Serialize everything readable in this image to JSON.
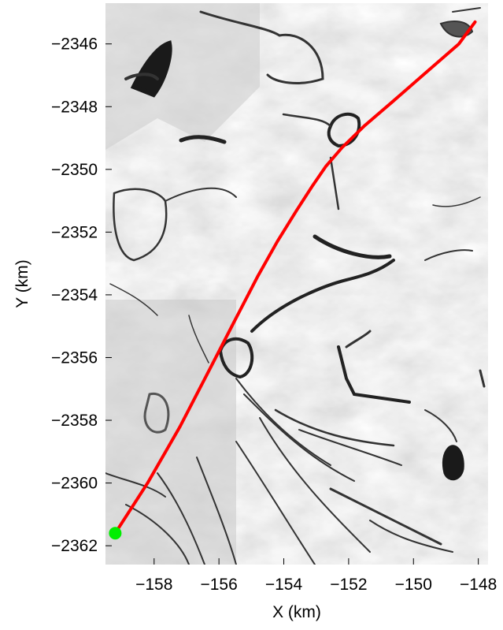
{
  "chart_data": {
    "type": "line",
    "title": "",
    "xlabel": "X (km)",
    "ylabel": "Y (km)",
    "xlim": [
      -159.5,
      -147.7
    ],
    "ylim": [
      -2362.6,
      -2344.7
    ],
    "x_ticks": [
      -158,
      -156,
      -154,
      -152,
      -150,
      -148
    ],
    "y_ticks": [
      -2346,
      -2348,
      -2350,
      -2352,
      -2354,
      -2356,
      -2358,
      -2360,
      -2362
    ],
    "x_tick_labels": [
      "−158",
      "−156",
      "−154",
      "−152",
      "−150",
      "−148"
    ],
    "y_tick_labels": [
      "−2346",
      "−2348",
      "−2350",
      "−2352",
      "−2354",
      "−2356",
      "−2358",
      "−2360",
      "−2362"
    ],
    "grid": false,
    "legend": "none",
    "background": "grayscale satellite image of sea ice with fractures and leads",
    "series": [
      {
        "color": "#ff0000",
        "x": [
          -159.2,
          -158.2,
          -157.2,
          -156.3,
          -155.5,
          -154.8,
          -154.2,
          -153.6,
          -153.1,
          -152.7,
          -152.2,
          -151.5,
          -150.6,
          -149.6,
          -148.6,
          -148.1
        ],
        "y": [
          -2361.6,
          -2360.0,
          -2358.2,
          -2356.4,
          -2354.8,
          -2353.4,
          -2352.3,
          -2351.3,
          -2350.5,
          -2349.9,
          -2349.3,
          -2348.6,
          -2347.8,
          -2346.9,
          -2346.0,
          -2345.3
        ]
      }
    ],
    "markers": [
      {
        "x": -159.2,
        "y": -2361.6,
        "color": "#00ee00",
        "shape": "circle"
      }
    ]
  }
}
